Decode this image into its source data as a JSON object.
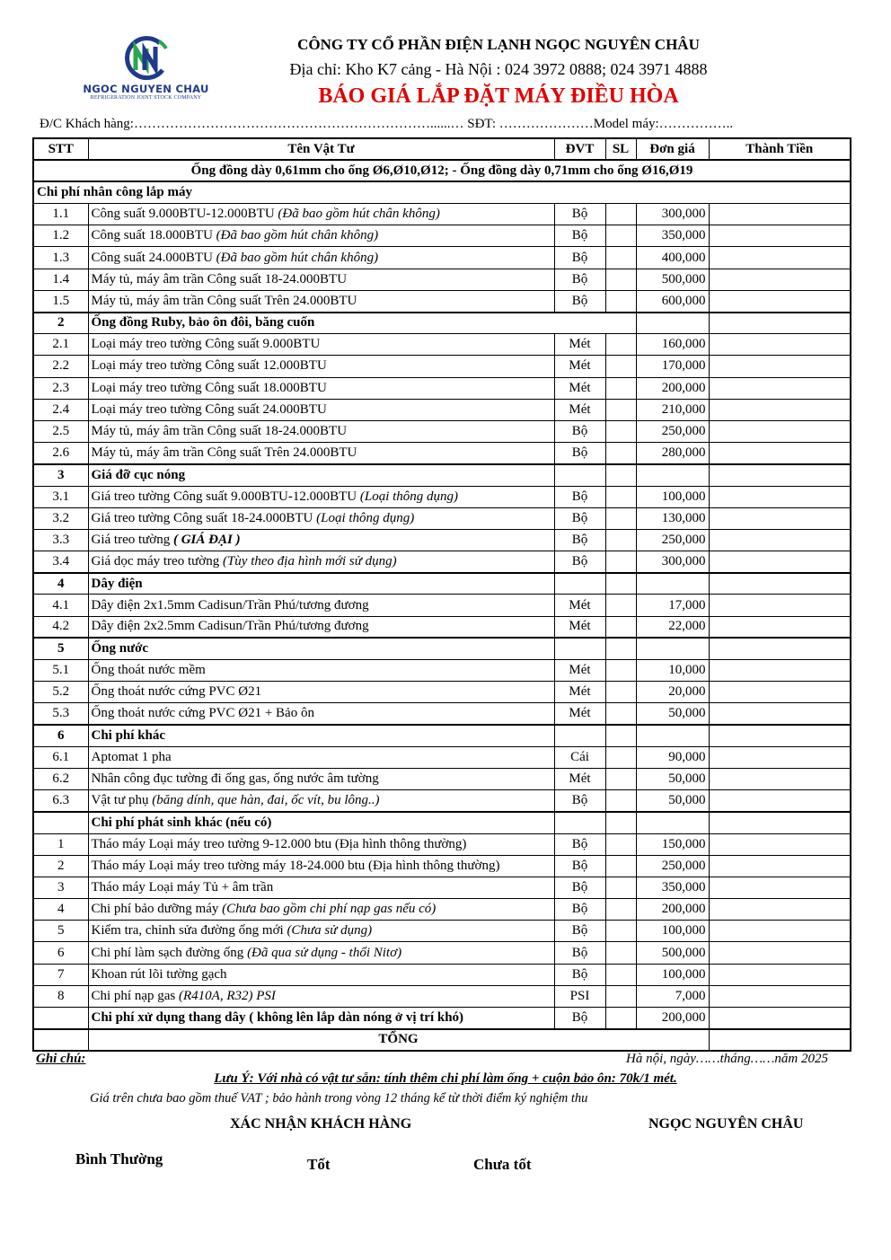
{
  "header": {
    "logo_text": "NGOC NGUYEN CHAU",
    "logo_sub": "REFRIGERATION JOINT STOCK COMPANY",
    "company": "CÔNG TY CỔ PHẦN ĐIỆN LẠNH NGỌC NGUYÊN CHÂU",
    "address": "Địa chỉ: Kho K7 cảng - Hà Nội : 024 3972 0888; 024 3971 4888",
    "title": "BÁO GIÁ  LẮP ĐẶT MÁY ĐIỀU HÒA",
    "customer_line": "Đ/C Khách hàng:…………………………………………………………......… SĐT: …………………Model máy:……………..",
    "brand_colors": {
      "blue": "#1f3a8a",
      "green": "#2aa84a",
      "title_red": "#e00000"
    }
  },
  "table": {
    "columns": [
      "STT",
      "Tên Vật Tư",
      "ĐVT",
      "SL",
      "Đơn giá",
      "Thành Tiền"
    ],
    "note": "Ống đồng dày 0,61mm cho ống Ø6,Ø10,Ø12;  - Ống đồng dày 0,71mm cho ống Ø16,Ø19",
    "rows": [
      {
        "type": "section-full",
        "name": "Chi phí nhân công lắp máy"
      },
      {
        "stt": "1.1",
        "name": "Công suất 9.000BTU-12.000BTU ",
        "note": "(Đã bao gồm hút chân không)",
        "unit": "Bộ",
        "price": "300,000"
      },
      {
        "stt": "1.2",
        "name": "Công suất 18.000BTU ",
        "note": "(Đã bao gồm hút chân không)",
        "unit": "Bộ",
        "price": "350,000"
      },
      {
        "stt": "1.3",
        "name": "Công suất 24.000BTU ",
        "note": "(Đã bao gồm hút chân không)",
        "unit": "Bộ",
        "price": "400,000"
      },
      {
        "stt": "1.4",
        "name": "Máy tủ, máy âm trần Công suất 18-24.000BTU",
        "unit": "Bộ",
        "price": "500,000"
      },
      {
        "stt": "1.5",
        "name": "Máy tủ, máy âm trần Công suất Trên 24.000BTU",
        "unit": "Bộ",
        "price": "600,000"
      },
      {
        "type": "section-wide",
        "stt": "2",
        "name": "Ống đồng Ruby, bảo ôn đôi, băng cuốn"
      },
      {
        "stt": "2.1",
        "name": "Loại máy treo tường Công suất 9.000BTU",
        "unit": "Mét",
        "price": "160,000"
      },
      {
        "stt": "2.2",
        "name": "Loại máy treo tường Công suất 12.000BTU",
        "unit": "Mét",
        "price": "170,000"
      },
      {
        "stt": "2.3",
        "name": "Loại máy treo tường Công suất 18.000BTU",
        "unit": "Mét",
        "price": "200,000"
      },
      {
        "stt": "2.4",
        "name": "Loại máy treo tường Công suất 24.000BTU",
        "unit": "Mét",
        "price": "210,000"
      },
      {
        "stt": "2.5",
        "name": "Máy tủ, máy âm trần Công suất 18-24.000BTU",
        "unit": "Bộ",
        "price": "250,000"
      },
      {
        "stt": "2.6",
        "name": "Máy tủ, máy âm trần Công suất Trên 24.000BTU",
        "unit": "Bộ",
        "price": "280,000"
      },
      {
        "type": "section",
        "stt": "3",
        "name": "Giá đỡ cục nóng"
      },
      {
        "stt": "3.1",
        "name": "Giá treo tường Công suất 9.000BTU-12.000BTU ",
        "note": "(Loại thông dụng)",
        "unit": "Bộ",
        "price": "100,000"
      },
      {
        "stt": "3.2",
        "name": "Giá treo tường Công suất 18-24.000BTU ",
        "note": "(Loại thông dụng)",
        "unit": "Bộ",
        "price": "130,000"
      },
      {
        "stt": "3.3",
        "name": "Giá treo tường ",
        "note": "( GIÁ ĐẠI )",
        "note_bold": true,
        "unit": "Bộ",
        "price": "250,000"
      },
      {
        "stt": "3.4",
        "name": "Giá dọc máy treo tường ",
        "note": "(Tùy theo địa hình mới sử dụng)",
        "unit": "Bộ",
        "price": "300,000"
      },
      {
        "type": "section",
        "stt": "4",
        "name": "Dây điện"
      },
      {
        "stt": "4.1",
        "name": "Dây điện 2x1.5mm Cadisun/Trần Phú/tương đương",
        "unit": "Mét",
        "price": "17,000"
      },
      {
        "stt": "4.2",
        "name": "Dây điện 2x2.5mm Cadisun/Trần Phú/tương đương",
        "unit": "Mét",
        "price": "22,000"
      },
      {
        "type": "section",
        "stt": "5",
        "name": "Ống nước"
      },
      {
        "stt": "5.1",
        "name": "Ống thoát nước mềm",
        "unit": "Mét",
        "price": "10,000"
      },
      {
        "stt": "5.2",
        "name": "Ống thoát nước cứng PVC Ø21",
        "unit": "Mét",
        "price": "20,000"
      },
      {
        "stt": "5.3",
        "name": "Ống thoát nước cứng PVC Ø21 + Bảo ôn",
        "unit": "Mét",
        "price": "50,000"
      },
      {
        "type": "section",
        "stt": "6",
        "name": "Chi phí khác"
      },
      {
        "stt": "6.1",
        "name": "Aptomat 1 pha",
        "unit": "Cái",
        "price": "90,000"
      },
      {
        "stt": "6.2",
        "name": "Nhân công đục tường đi ống gas, ống nước âm tường",
        "unit": "Mét",
        "price": "50,000"
      },
      {
        "stt": "6.3",
        "name": "Vật tư phụ ",
        "note": "(băng dính, que hàn, đai, ốc vít, bu lông..)",
        "unit": "Bộ",
        "price": "50,000"
      },
      {
        "type": "section",
        "stt": "",
        "name": "Chi phí phát sinh khác (nếu có)"
      },
      {
        "stt": "1",
        "name": "Tháo máy Loại máy treo tường 9-12.000  btu (Địa hình thông thường)",
        "unit": "Bộ",
        "price": "150,000"
      },
      {
        "stt": "2",
        "name": "Tháo máy Loại máy treo tường máy 18-24.000 btu (Địa hình thông thường)",
        "unit": "Bộ",
        "price": "250,000"
      },
      {
        "stt": "3",
        "name": "Tháo máy Loại máy Tủ + âm trần",
        "unit": "Bộ",
        "price": "350,000"
      },
      {
        "stt": "4",
        "name": "Chi phí bảo dưỡng máy ",
        "note": "(Chưa bao gồm chi phí nạp gas nếu có)",
        "unit": "Bộ",
        "price": "200,000"
      },
      {
        "stt": "5",
        "name": "Kiểm tra, chỉnh sửa đường ống mới ",
        "note": "(Chưa sử dụng)",
        "unit": "Bộ",
        "price": "100,000"
      },
      {
        "stt": "6",
        "name": "Chi phí làm sạch đường ống ",
        "note": "(Đã qua sử dụng - thổi Nitơ)",
        "unit": "Bộ",
        "price": "500,000"
      },
      {
        "stt": "7",
        "name": "Khoan rút lõi tường gạch",
        "unit": "Bộ",
        "price": "100,000"
      },
      {
        "stt": "8",
        "name": "Chi phí nạp gas ",
        "note": "(R410A, R32) PSI",
        "unit": "PSI",
        "price": "7,000"
      },
      {
        "stt": "",
        "name": "Chi phí xử dụng thang dây ( không lên lắp dàn nóng ở vị trí khó)",
        "bold": true,
        "unit": "Bộ",
        "price": "200,000"
      }
    ],
    "total_label": "TỔNG"
  },
  "footer": {
    "note_label": "Ghi chú:",
    "date": "Hà nội, ngày……tháng……năm 2025",
    "attention": "Lưu Ý: Với nhà có vật tư sẵn:  tính thêm chi phí làm ống + cuộn bảo ôn: 70k/1 mét.",
    "vat": "Giá trên chưa bao gồm thuế VAT ; bảo hành trong vòng 12 tháng kể từ thời điểm ký nghiệm thu",
    "confirm": "XÁC NHẬN KHÁCH HÀNG",
    "company_sign": "NGỌC NGUYÊN CHÂU",
    "rating_normal": "Bình Thường",
    "rating_good": "Tốt",
    "rating_bad": "Chưa tốt"
  }
}
